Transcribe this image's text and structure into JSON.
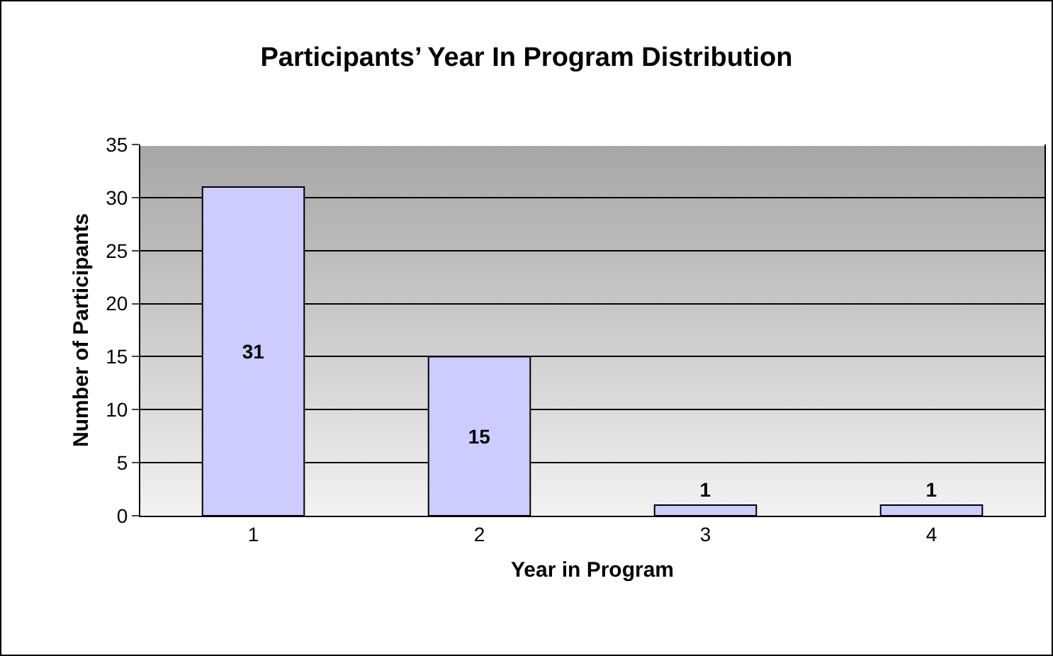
{
  "chart_data": {
    "type": "bar",
    "title": "Participants’ Year In Program Distribution",
    "xlabel": "Year in Program",
    "ylabel": "Number of Participants",
    "categories": [
      "1",
      "2",
      "3",
      "4"
    ],
    "values": [
      31,
      15,
      1,
      1
    ],
    "color": "#ccccff",
    "ylim": [
      0,
      35
    ],
    "yticks": [
      0,
      5,
      10,
      15,
      20,
      25,
      30,
      35
    ],
    "grid": "y",
    "data_labels": true,
    "legend": false
  }
}
